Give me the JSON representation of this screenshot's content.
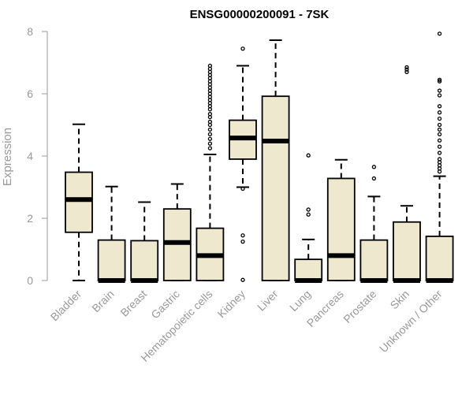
{
  "chart_data": {
    "type": "boxplot",
    "title": "ENSG00000200091 - 7SK",
    "xlabel": "",
    "ylabel": "Expression",
    "ylim": [
      0,
      8
    ],
    "yticks": [
      0,
      2,
      4,
      6,
      8
    ],
    "box_fill": "#eee8cf",
    "axis_color": "#999999",
    "categories": [
      "Bladder",
      "Brain",
      "Breast",
      "Gastric",
      "Hematopoietic cells",
      "Kidney",
      "Liver",
      "Lung",
      "Pancreas",
      "Prostate",
      "Skin",
      "Unknown / Other"
    ],
    "boxes": [
      {
        "category": "Bladder",
        "whisker_low": 0,
        "q1": 1.55,
        "median": 2.6,
        "q3": 3.48,
        "whisker_high": 5.02,
        "outliers": []
      },
      {
        "category": "Brain",
        "whisker_low": 0,
        "q1": 0,
        "median": 0,
        "q3": 1.3,
        "whisker_high": 3.02,
        "outliers": []
      },
      {
        "category": "Breast",
        "whisker_low": 0,
        "q1": 0,
        "median": 0,
        "q3": 1.28,
        "whisker_high": 2.52,
        "outliers": []
      },
      {
        "category": "Gastric",
        "whisker_low": 0,
        "q1": 0,
        "median": 1.22,
        "q3": 2.3,
        "whisker_high": 3.1,
        "outliers": []
      },
      {
        "category": "Hematopoietic cells",
        "whisker_low": 0,
        "q1": 0,
        "median": 0.8,
        "q3": 1.68,
        "whisker_high": 4.05,
        "outliers": [
          4.25,
          4.4,
          4.55,
          4.7,
          4.85,
          5.0,
          5.1,
          5.25,
          5.35,
          5.5,
          5.6,
          5.7,
          5.8,
          5.9,
          6.0,
          6.1,
          6.2,
          6.3,
          6.4,
          6.5,
          6.6,
          6.7,
          6.8,
          6.9
        ]
      },
      {
        "category": "Kidney",
        "whisker_low": 3.0,
        "q1": 3.9,
        "median": 4.58,
        "q3": 5.15,
        "whisker_high": 6.9,
        "outliers": [
          7.45,
          2.95,
          1.45,
          1.25,
          0.02
        ]
      },
      {
        "category": "Liver",
        "whisker_low": 0,
        "q1": 0,
        "median": 4.48,
        "q3": 5.92,
        "whisker_high": 7.72,
        "outliers": []
      },
      {
        "category": "Lung",
        "whisker_low": 0,
        "q1": 0,
        "median": 0,
        "q3": 0.68,
        "whisker_high": 1.32,
        "outliers": [
          4.02,
          2.28,
          2.12
        ]
      },
      {
        "category": "Pancreas",
        "whisker_low": 0,
        "q1": 0,
        "median": 0.8,
        "q3": 3.28,
        "whisker_high": 3.88,
        "outliers": []
      },
      {
        "category": "Prostate",
        "whisker_low": 0,
        "q1": 0,
        "median": 0,
        "q3": 1.3,
        "whisker_high": 2.7,
        "outliers": [
          3.65,
          3.28
        ]
      },
      {
        "category": "Skin",
        "whisker_low": 0,
        "q1": 0,
        "median": 0,
        "q3": 1.88,
        "whisker_high": 2.4,
        "outliers": [
          6.85,
          6.78,
          6.7
        ]
      },
      {
        "category": "Unknown / Other",
        "whisker_low": 0,
        "q1": 0,
        "median": 0,
        "q3": 1.42,
        "whisker_high": 3.35,
        "outliers": [
          7.93,
          6.45,
          6.4,
          6.1,
          5.95,
          5.6,
          5.4,
          5.2,
          5.0,
          4.85,
          4.7,
          4.5,
          4.3,
          4.1,
          3.9,
          3.8,
          3.7,
          3.6,
          3.5
        ]
      }
    ]
  }
}
